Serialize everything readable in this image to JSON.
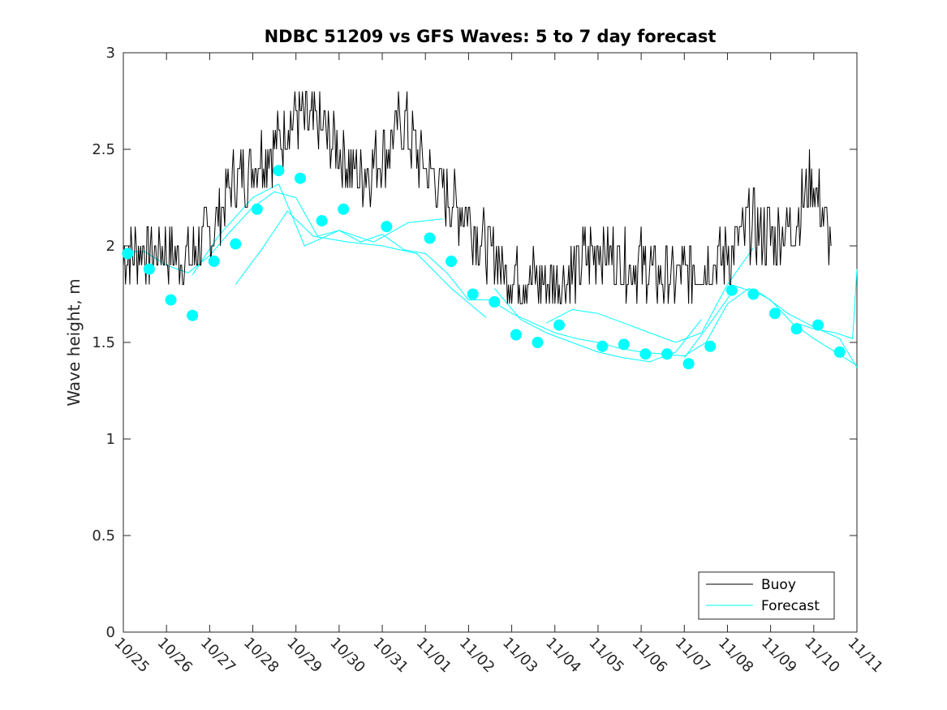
{
  "chart_data": {
    "type": "line",
    "title": "NDBC 51209 vs GFS Waves: 5 to 7 day forecast",
    "xlabel": "",
    "ylabel": "Wave height, m",
    "xlim": [
      0,
      17
    ],
    "ylim": [
      0,
      3
    ],
    "yticks": [
      0,
      0.5,
      1,
      1.5,
      2,
      2.5,
      3
    ],
    "ytick_labels": [
      "0",
      "0.5",
      "1",
      "1.5",
      "2",
      "2.5",
      "3"
    ],
    "xticks": [
      0,
      1,
      2,
      3,
      4,
      5,
      6,
      7,
      8,
      9,
      10,
      11,
      12,
      13,
      14,
      15,
      16,
      17
    ],
    "xtick_labels": [
      "10/25",
      "10/26",
      "10/27",
      "10/28",
      "10/29",
      "10/30",
      "10/31",
      "11/01",
      "11/02",
      "11/03",
      "11/04",
      "11/05",
      "11/06",
      "11/07",
      "11/08",
      "11/09",
      "11/10",
      "11/11"
    ],
    "grid": false,
    "legend_position": "bottom-right",
    "series": [
      {
        "name": "Buoy",
        "color": "#000000",
        "x": [
          0,
          0.5,
          1,
          1.5,
          2,
          2.5,
          3,
          3.5,
          4,
          4.5,
          5,
          5.5,
          6,
          6.5,
          7,
          7.5,
          8,
          8.5,
          9,
          9.5,
          10,
          10.5,
          11,
          11.5,
          12,
          12.5,
          13,
          13.5,
          14,
          14.5,
          15,
          15.5,
          16,
          16.4
        ],
        "values": [
          1.95,
          1.98,
          1.97,
          1.93,
          2.05,
          2.32,
          2.42,
          2.52,
          2.68,
          2.62,
          2.5,
          2.35,
          2.48,
          2.65,
          2.4,
          2.25,
          2.15,
          1.95,
          1.85,
          1.82,
          1.8,
          1.88,
          2.0,
          1.92,
          1.9,
          1.82,
          1.85,
          1.9,
          1.95,
          2.1,
          2.05,
          2.1,
          2.35,
          2.0
        ]
      },
      {
        "name": "Forecast",
        "color": "#00ffff",
        "x": [
          0,
          0.5,
          1,
          1.5,
          2,
          2.5,
          3,
          3.5,
          4,
          4.5,
          5,
          5.5,
          6,
          6.5,
          7,
          7.5,
          8,
          8.5,
          9,
          9.5,
          10,
          10.5,
          11,
          11.5,
          12,
          12.5,
          13,
          13.5,
          14,
          14.5,
          15,
          15.5,
          16,
          16.5,
          17
        ],
        "values": [
          1.97,
          1.97,
          1.9,
          1.86,
          1.95,
          2.08,
          2.2,
          2.28,
          2.25,
          2.05,
          2.08,
          2.02,
          2.06,
          1.98,
          1.96,
          1.86,
          1.72,
          1.72,
          1.65,
          1.6,
          1.55,
          1.52,
          1.5,
          1.47,
          1.45,
          1.44,
          1.43,
          1.5,
          1.7,
          1.78,
          1.72,
          1.6,
          1.52,
          1.45,
          1.38
        ]
      }
    ],
    "forecast_markers": {
      "x": [
        0.1,
        0.6,
        1.1,
        1.6,
        2.1,
        2.6,
        3.1,
        3.6,
        4.1,
        4.6,
        5.1,
        6.1,
        7.1,
        7.6,
        8.1,
        8.6,
        9.1,
        9.6,
        10.1,
        11.1,
        11.6,
        12.1,
        12.6,
        13.1,
        13.6,
        14.1,
        14.6,
        15.1,
        15.6,
        16.1,
        16.6
      ],
      "values": [
        1.96,
        1.88,
        1.72,
        1.64,
        1.92,
        2.01,
        2.19,
        2.39,
        2.35,
        2.13,
        2.19,
        2.1,
        2.04,
        1.92,
        1.75,
        1.71,
        1.54,
        1.5,
        1.59,
        1.48,
        1.49,
        1.44,
        1.44,
        1.39,
        1.48,
        1.77,
        1.75,
        1.65,
        1.57,
        1.59,
        1.45
      ]
    },
    "forecast_extra_runs": [
      {
        "x": [
          1.6,
          2.2,
          3.0,
          3.6,
          4.2,
          5.0,
          5.8,
          6.6,
          7.4
        ],
        "values": [
          1.85,
          2.05,
          2.25,
          2.32,
          2.0,
          2.08,
          2.02,
          2.12,
          2.14
        ]
      },
      {
        "x": [
          2.6,
          3.2,
          3.8,
          4.4,
          5.2,
          6.0,
          6.8,
          7.6,
          8.4
        ],
        "values": [
          1.8,
          1.98,
          2.18,
          2.05,
          2.02,
          2.0,
          1.96,
          1.78,
          1.63
        ]
      },
      {
        "x": [
          8.6,
          9.2,
          9.8,
          10.4,
          11.0,
          11.6,
          12.2,
          12.8,
          13.4
        ],
        "values": [
          1.78,
          1.62,
          1.55,
          1.5,
          1.45,
          1.42,
          1.4,
          1.45,
          1.62
        ]
      },
      {
        "x": [
          9.8,
          10.4,
          11.0,
          11.6,
          12.2,
          12.8,
          13.4,
          14.0,
          14.6
        ],
        "values": [
          1.6,
          1.67,
          1.65,
          1.6,
          1.55,
          1.5,
          1.55,
          1.8,
          1.99
        ]
      },
      {
        "x": [
          13.0,
          13.6,
          14.2,
          14.8,
          15.4,
          16.0,
          16.6,
          17.0
        ],
        "values": [
          1.42,
          1.6,
          1.79,
          1.75,
          1.65,
          1.58,
          1.52,
          1.37
        ]
      },
      {
        "x": [
          15.6,
          16.0,
          16.5,
          16.9,
          17.0
        ],
        "values": [
          1.6,
          1.57,
          1.55,
          1.52,
          1.88
        ]
      }
    ]
  },
  "legend": {
    "entries": [
      {
        "label": "Buoy",
        "color": "#000000"
      },
      {
        "label": "Forecast",
        "color": "#00ffff"
      }
    ]
  }
}
